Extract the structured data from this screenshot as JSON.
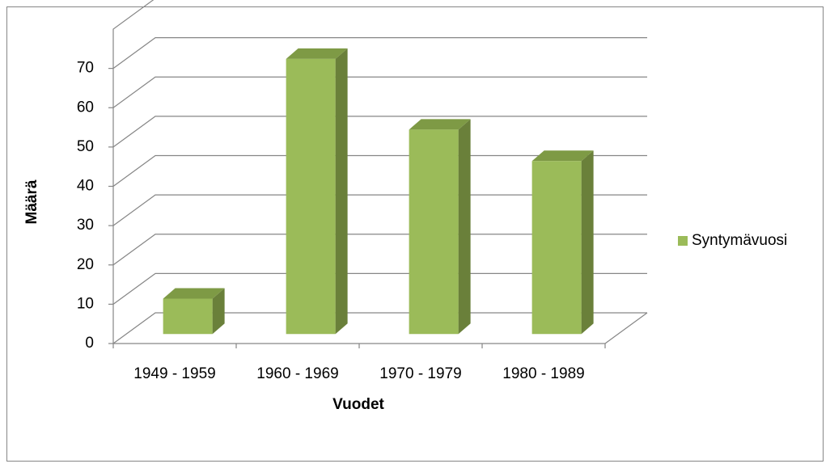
{
  "chart_data": {
    "type": "bar3d",
    "x_label": "Vuodet",
    "y_label": "Määrä",
    "categories": [
      "1949 - 1959",
      "1960 - 1969",
      "1970 - 1979",
      "1980 - 1989"
    ],
    "series": [
      {
        "name": "Syntymävuosi",
        "color": "#9bbb59",
        "values": [
          9,
          70,
          52,
          44
        ]
      }
    ],
    "ylim": [
      0,
      80
    ],
    "yticks": [
      0,
      10,
      20,
      30,
      40,
      50,
      60,
      70
    ],
    "grid": true,
    "legend": "right"
  }
}
